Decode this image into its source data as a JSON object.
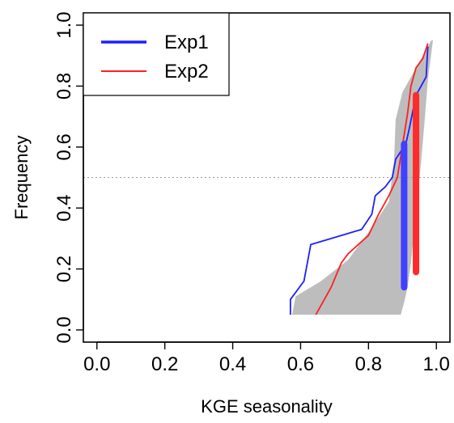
{
  "chart_data": {
    "type": "line",
    "xlabel": "KGE seasonality",
    "ylabel": "Frequency",
    "xlim": [
      0.0,
      1.0
    ],
    "ylim": [
      0.0,
      1.0
    ],
    "x_ticks": [
      "0.0",
      "0.2",
      "0.4",
      "0.6",
      "0.8",
      "1.0"
    ],
    "y_ticks": [
      "0.0",
      "0.2",
      "0.4",
      "0.6",
      "0.8",
      "1.0"
    ],
    "legend_position": "top-left",
    "reference_line": {
      "y": 0.5,
      "style": "dotted",
      "color": "#999999"
    },
    "band": {
      "color": "#bdbdbd",
      "upper": [
        [
          0.575,
          0.05
        ],
        [
          0.585,
          0.11
        ],
        [
          0.66,
          0.16
        ],
        [
          0.74,
          0.23
        ],
        [
          0.8,
          0.32
        ],
        [
          0.86,
          0.42
        ],
        [
          0.875,
          0.55
        ],
        [
          0.88,
          0.69
        ],
        [
          0.9,
          0.78
        ],
        [
          0.95,
          0.88
        ],
        [
          0.985,
          0.95
        ]
      ],
      "lower": [
        [
          0.99,
          0.95
        ],
        [
          0.975,
          0.82
        ],
        [
          0.965,
          0.68
        ],
        [
          0.955,
          0.55
        ],
        [
          0.945,
          0.44
        ],
        [
          0.935,
          0.33
        ],
        [
          0.925,
          0.22
        ],
        [
          0.915,
          0.14
        ],
        [
          0.905,
          0.09
        ],
        [
          0.895,
          0.05
        ]
      ]
    },
    "series": [
      {
        "name": "Exp1",
        "color": "#1f1fff",
        "x": [
          0.57,
          0.57,
          0.61,
          0.63,
          0.78,
          0.81,
          0.82,
          0.85,
          0.87,
          0.88,
          0.91,
          0.92,
          0.94,
          0.97,
          0.975
        ],
        "y": [
          0.05,
          0.1,
          0.16,
          0.28,
          0.33,
          0.38,
          0.44,
          0.47,
          0.5,
          0.56,
          0.61,
          0.66,
          0.77,
          0.83,
          0.93
        ]
      },
      {
        "name": "Exp2",
        "color": "#ff2020",
        "x": [
          0.645,
          0.69,
          0.72,
          0.74,
          0.8,
          0.83,
          0.86,
          0.885,
          0.895,
          0.905,
          0.915,
          0.925,
          0.94,
          0.96,
          0.975
        ],
        "y": [
          0.05,
          0.14,
          0.22,
          0.25,
          0.31,
          0.38,
          0.44,
          0.5,
          0.57,
          0.64,
          0.71,
          0.8,
          0.86,
          0.89,
          0.94
        ]
      }
    ],
    "ranges": [
      {
        "series": "Exp1",
        "color": "#4040ff",
        "x": 0.905,
        "y_min": 0.14,
        "y_max": 0.61
      },
      {
        "series": "Exp2",
        "color": "#ff2a2a",
        "x": 0.94,
        "y_min": 0.19,
        "y_max": 0.77
      }
    ]
  }
}
